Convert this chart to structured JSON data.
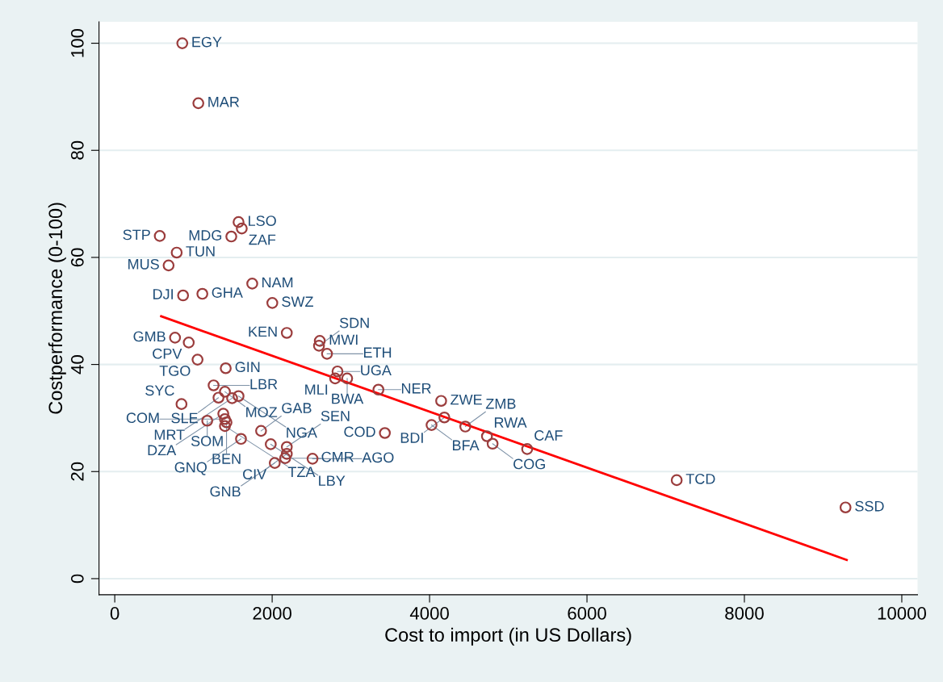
{
  "chart_data": {
    "type": "scatter",
    "xlabel": "Cost to import (in US Dollars)",
    "ylabel": "Costperformance (0-100)",
    "xlim": [
      -200,
      10200
    ],
    "ylim": [
      -3,
      104
    ],
    "xticks": [
      0,
      2000,
      4000,
      6000,
      8000,
      10000
    ],
    "yticks": [
      0,
      20,
      40,
      60,
      80,
      100
    ],
    "grid": "y",
    "series": [
      {
        "marker": "circle",
        "color": "#9b3d3d",
        "x": [
          858,
          1062,
          1573,
          1614,
          1481,
          572,
          787,
          684,
          1747,
          868,
          1113,
          2002,
          766,
          940,
          2186,
          2605,
          2595,
          2697,
          1052,
          1410,
          2830,
          2800,
          2953,
          3350,
          4147,
          4188,
          4025,
          4454,
          4729,
          4801,
          5240,
          3432,
          7140,
          9285,
          1256,
          1400,
          1318,
          1491,
          1573,
          848,
          1379,
          1175,
          1400,
          1420,
          1400,
          1859,
          1604,
          1982,
          2186,
          2186,
          2165,
          2513,
          2033
        ],
        "values": [
          100,
          88.8,
          66.6,
          65.4,
          63.9,
          64.0,
          60.9,
          58.5,
          55.1,
          52.9,
          53.2,
          51.5,
          45.0,
          44.1,
          45.9,
          44.4,
          43.5,
          42.0,
          40.9,
          39.3,
          38.7,
          37.4,
          37.4,
          35.3,
          33.2,
          30.1,
          28.7,
          28.4,
          26.6,
          25.2,
          24.2,
          27.2,
          18.4,
          13.3,
          36.1,
          34.9,
          33.8,
          33.7,
          34.1,
          32.6,
          30.8,
          29.5,
          29.8,
          29.2,
          28.5,
          27.6,
          26.1,
          25.1,
          24.6,
          23.3,
          22.5,
          22.4,
          21.6
        ]
      },
      {
        "type": "line",
        "color": "#ff0000",
        "x": [
          590,
          9300
        ],
        "values": [
          49.0,
          3.5
        ]
      }
    ],
    "annotations": [
      {
        "text": "EGY",
        "x": 858,
        "y": 100
      },
      {
        "text": "MAR",
        "x": 1062,
        "y": 88.8
      },
      {
        "text": "LSO",
        "x": 1573,
        "y": 66.6
      },
      {
        "text": "ZAF",
        "x": 1614,
        "y": 65.4
      },
      {
        "text": "MDG",
        "x": 1481,
        "y": 63.9
      },
      {
        "text": "STP",
        "x": 572,
        "y": 64.0
      },
      {
        "text": "TUN",
        "x": 787,
        "y": 60.9
      },
      {
        "text": "MUS",
        "x": 684,
        "y": 58.5
      },
      {
        "text": "NAM",
        "x": 1747,
        "y": 55.1
      },
      {
        "text": "DJI",
        "x": 868,
        "y": 52.9
      },
      {
        "text": "GHA",
        "x": 1113,
        "y": 53.2
      },
      {
        "text": "SWZ",
        "x": 2002,
        "y": 51.5
      },
      {
        "text": "GMB",
        "x": 766,
        "y": 45.0
      },
      {
        "text": "CPV",
        "x": 940,
        "y": 44.1
      },
      {
        "text": "KEN",
        "x": 2186,
        "y": 45.9
      },
      {
        "text": "MWI",
        "x": 2605,
        "y": 44.4
      },
      {
        "text": "SDN",
        "x": 2595,
        "y": 43.5
      },
      {
        "text": "ETH",
        "x": 2697,
        "y": 42.0
      },
      {
        "text": "TGO",
        "x": 1052,
        "y": 40.9
      },
      {
        "text": "GIN",
        "x": 1410,
        "y": 39.3
      },
      {
        "text": "UGA",
        "x": 2830,
        "y": 38.7
      },
      {
        "text": "MLI",
        "x": 2800,
        "y": 37.4
      },
      {
        "text": "BWA",
        "x": 2953,
        "y": 37.4
      },
      {
        "text": "NER",
        "x": 3350,
        "y": 35.3
      },
      {
        "text": "ZWE",
        "x": 4147,
        "y": 33.2
      },
      {
        "text": "BDI",
        "x": 4188,
        "y": 30.1
      },
      {
        "text": "BFA",
        "x": 4025,
        "y": 28.7
      },
      {
        "text": "ZMB",
        "x": 4454,
        "y": 28.4
      },
      {
        "text": "RWA",
        "x": 4729,
        "y": 26.6
      },
      {
        "text": "COG",
        "x": 4801,
        "y": 25.2
      },
      {
        "text": "CAF",
        "x": 5240,
        "y": 24.2
      },
      {
        "text": "COD",
        "x": 3432,
        "y": 27.2
      },
      {
        "text": "TCD",
        "x": 7140,
        "y": 18.4
      },
      {
        "text": "SSD",
        "x": 9285,
        "y": 13.3
      },
      {
        "text": "LBR",
        "x": 1256,
        "y": 36.1
      },
      {
        "text": "MOZ",
        "x": 1400,
        "y": 34.9
      },
      {
        "text": "SLE",
        "x": 1318,
        "y": 33.8
      },
      {
        "text": "MRT",
        "x": 1491,
        "y": 33.7
      },
      {
        "text": "NGA",
        "x": 1573,
        "y": 34.1
      },
      {
        "text": "SYC",
        "x": 848,
        "y": 32.6
      },
      {
        "text": "DZA",
        "x": 1379,
        "y": 30.8
      },
      {
        "text": "SOM",
        "x": 1175,
        "y": 29.5
      },
      {
        "text": "COM",
        "x": 1400,
        "y": 29.8
      },
      {
        "text": "BEN",
        "x": 1420,
        "y": 29.2
      },
      {
        "text": "TZA",
        "x": 1400,
        "y": 28.5
      },
      {
        "text": "GAB",
        "x": 1859,
        "y": 27.6
      },
      {
        "text": "GNQ",
        "x": 1604,
        "y": 26.1
      },
      {
        "text": "LBY",
        "x": 1982,
        "y": 25.1
      },
      {
        "text": "SEN",
        "x": 2186,
        "y": 24.6
      },
      {
        "text": "CIV",
        "x": 2186,
        "y": 23.3
      },
      {
        "text": "CMR",
        "x": 2165,
        "y": 22.5
      },
      {
        "text": "AGO",
        "x": 2513,
        "y": 22.4
      },
      {
        "text": "GNB",
        "x": 2033,
        "y": 21.6
      }
    ]
  }
}
